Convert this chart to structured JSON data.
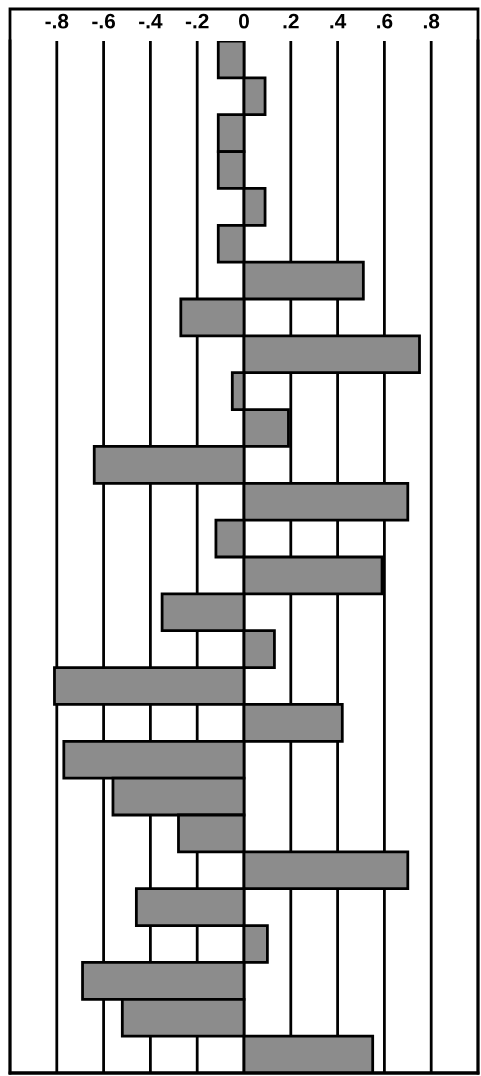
{
  "chart_data": {
    "type": "bar",
    "orientation": "horizontal",
    "categories": [
      null,
      null,
      null,
      null,
      null,
      null,
      null,
      null,
      null,
      null,
      null,
      null,
      null,
      null,
      null,
      null,
      null,
      null,
      null,
      null,
      null,
      null,
      null,
      null,
      null,
      null,
      null,
      null
    ],
    "values": [
      -0.11,
      0.09,
      -0.11,
      -0.11,
      0.09,
      -0.11,
      0.51,
      -0.27,
      0.75,
      -0.05,
      0.19,
      -0.64,
      0.7,
      -0.12,
      0.59,
      -0.35,
      0.13,
      -0.81,
      0.42,
      -0.77,
      -0.56,
      -0.28,
      0.7,
      -0.46,
      0.1,
      -0.69,
      -0.52,
      0.55
    ],
    "color": "#8c8c8c",
    "xlim": [
      -1,
      1
    ],
    "xticks": [
      {
        "value": -0.8,
        "label": "-.8"
      },
      {
        "value": -0.6,
        "label": "-.6"
      },
      {
        "value": -0.4,
        "label": "-.4"
      },
      {
        "value": -0.2,
        "label": "-.2"
      },
      0,
      {
        "value": 0.2,
        "label": ".2"
      },
      {
        "value": 0.4,
        "label": ".4"
      },
      {
        "value": 0.6,
        "label": ".6"
      },
      {
        "value": 0.8,
        "label": ".8"
      }
    ],
    "grid": "x"
  }
}
